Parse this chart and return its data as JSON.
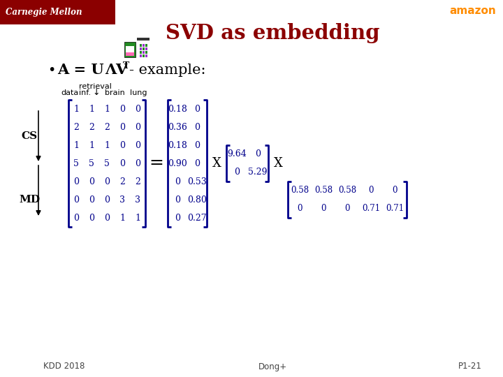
{
  "title": "SVD as embedding",
  "title_color": "#8B0000",
  "bg_color": "#FFFFFF",
  "A_matrix": [
    [
      1,
      1,
      1,
      0,
      0
    ],
    [
      2,
      2,
      2,
      0,
      0
    ],
    [
      1,
      1,
      1,
      0,
      0
    ],
    [
      5,
      5,
      5,
      0,
      0
    ],
    [
      0,
      0,
      0,
      2,
      2
    ],
    [
      0,
      0,
      0,
      3,
      3
    ],
    [
      0,
      0,
      0,
      1,
      1
    ]
  ],
  "U_matrix": [
    [
      "0.18",
      "0"
    ],
    [
      "0.36",
      "0"
    ],
    [
      "0.18",
      "0"
    ],
    [
      "0.90",
      "0"
    ],
    [
      "0",
      "0.53"
    ],
    [
      "0",
      "0.80"
    ],
    [
      "0",
      "0.27"
    ]
  ],
  "Lambda_matrix": [
    [
      "9.64",
      "0"
    ],
    [
      "0",
      "5.29"
    ]
  ],
  "VT_matrix": [
    [
      "0.58",
      "0.58",
      "0.58",
      "0",
      "0"
    ],
    [
      "0",
      "0",
      "0",
      "0.71",
      "0.71"
    ]
  ],
  "matrix_color": "#00008B",
  "cmu_color": "#8B0000",
  "amazon_color": "#FF8C00",
  "footer_left": "KDD 2018",
  "footer_center": "Dong+",
  "footer_right": "P1-21"
}
